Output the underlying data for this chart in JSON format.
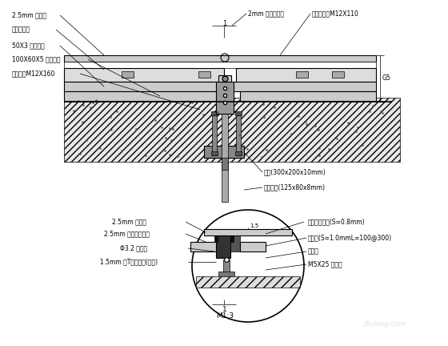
{
  "bg_color": "#ffffff",
  "line_color": "#000000",
  "hatch_color": "#888888",
  "labels_top": {
    "label1": "2.5mm 铝单板",
    "label2": "2mm 耐候密封胶",
    "label3": "不锈钢螺栓M12X110",
    "label4": "铝板龙骨层",
    "label5": "50X3 铝件铝槽",
    "label6": "100X60X5 铝件铝槽",
    "label7": "化学螺栓M12X160",
    "label8": "钢板(300x200x10mm)",
    "label9": "镀锌角板(125x80x8mm)"
  },
  "labels_bottom": {
    "label1": "2.5mm 铝单板",
    "label2": "2.5mm 铝单板收口件",
    "label3": "Φ3.2 拉铆钉",
    "label4": "1.5mm 氟T碳漆铝件(铝板)",
    "label5": "泡沫条密封胶(S=0.8mm)",
    "label6": "密封条(S=1.0mmL=100@300)",
    "label7": "螺丝孔",
    "label8": "M5X25 铝螺栓",
    "label9": "1",
    "label10": "M1:3"
  },
  "dim_text": "G5"
}
